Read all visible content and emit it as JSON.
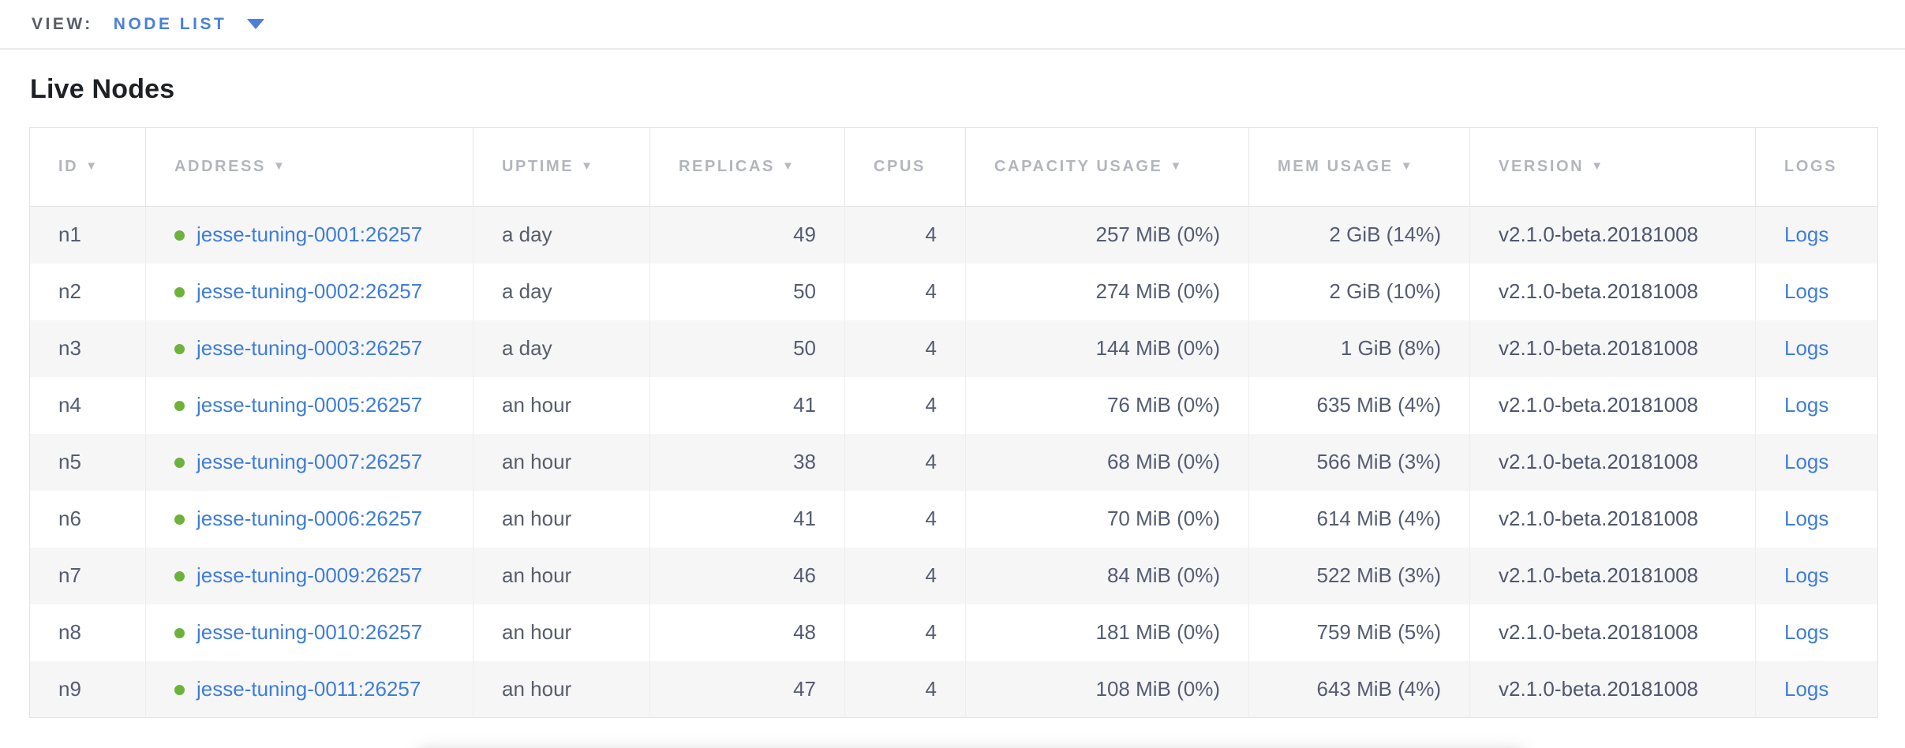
{
  "topbar": {
    "view_label": "VIEW:",
    "view_value": "NODE LIST"
  },
  "page": {
    "title": "Live Nodes"
  },
  "colors": {
    "accent_blue": "#4a80d9",
    "link_blue": "#3f7dd9",
    "health_green": "#6db23a",
    "header_gray": "#b2b6bc",
    "cell_slate": "#545c71",
    "alt_row_bg": "#f6f6f7"
  },
  "icons": {
    "node_status": "green-dot-icon",
    "sort": "triangle-down-icon",
    "view_caret": "triangle-down-icon"
  },
  "table": {
    "columns": [
      {
        "label": "ID",
        "arrow": "▼"
      },
      {
        "label": "ADDRESS",
        "arrow": "▼"
      },
      {
        "label": "UPTIME",
        "arrow": "▼"
      },
      {
        "label": "REPLICAS",
        "arrow": "▼"
      },
      {
        "label": "CPUS",
        "arrow": ""
      },
      {
        "label": "CAPACITY USAGE",
        "arrow": "▼"
      },
      {
        "label": "MEM USAGE",
        "arrow": "▼"
      },
      {
        "label": "VERSION",
        "arrow": "▼"
      },
      {
        "label": "LOGS",
        "arrow": ""
      }
    ],
    "rows": [
      {
        "id": "n1",
        "address": "jesse-tuning-0001:26257",
        "uptime": "a day",
        "replicas": "49",
        "cpus": "4",
        "capacity": "257 MiB (0%)",
        "mem": "2 GiB (14%)",
        "version": "v2.1.0-beta.20181008",
        "logs": "Logs"
      },
      {
        "id": "n2",
        "address": "jesse-tuning-0002:26257",
        "uptime": "a day",
        "replicas": "50",
        "cpus": "4",
        "capacity": "274 MiB (0%)",
        "mem": "2 GiB (10%)",
        "version": "v2.1.0-beta.20181008",
        "logs": "Logs"
      },
      {
        "id": "n3",
        "address": "jesse-tuning-0003:26257",
        "uptime": "a day",
        "replicas": "50",
        "cpus": "4",
        "capacity": "144 MiB (0%)",
        "mem": "1 GiB (8%)",
        "version": "v2.1.0-beta.20181008",
        "logs": "Logs"
      },
      {
        "id": "n4",
        "address": "jesse-tuning-0005:26257",
        "uptime": "an hour",
        "replicas": "41",
        "cpus": "4",
        "capacity": "76 MiB (0%)",
        "mem": "635 MiB (4%)",
        "version": "v2.1.0-beta.20181008",
        "logs": "Logs"
      },
      {
        "id": "n5",
        "address": "jesse-tuning-0007:26257",
        "uptime": "an hour",
        "replicas": "38",
        "cpus": "4",
        "capacity": "68 MiB (0%)",
        "mem": "566 MiB (3%)",
        "version": "v2.1.0-beta.20181008",
        "logs": "Logs"
      },
      {
        "id": "n6",
        "address": "jesse-tuning-0006:26257",
        "uptime": "an hour",
        "replicas": "41",
        "cpus": "4",
        "capacity": "70 MiB (0%)",
        "mem": "614 MiB (4%)",
        "version": "v2.1.0-beta.20181008",
        "logs": "Logs"
      },
      {
        "id": "n7",
        "address": "jesse-tuning-0009:26257",
        "uptime": "an hour",
        "replicas": "46",
        "cpus": "4",
        "capacity": "84 MiB (0%)",
        "mem": "522 MiB (3%)",
        "version": "v2.1.0-beta.20181008",
        "logs": "Logs"
      },
      {
        "id": "n8",
        "address": "jesse-tuning-0010:26257",
        "uptime": "an hour",
        "replicas": "48",
        "cpus": "4",
        "capacity": "181 MiB (0%)",
        "mem": "759 MiB (5%)",
        "version": "v2.1.0-beta.20181008",
        "logs": "Logs"
      },
      {
        "id": "n9",
        "address": "jesse-tuning-0011:26257",
        "uptime": "an hour",
        "replicas": "47",
        "cpus": "4",
        "capacity": "108 MiB (0%)",
        "mem": "643 MiB (4%)",
        "version": "v2.1.0-beta.20181008",
        "logs": "Logs"
      }
    ]
  }
}
